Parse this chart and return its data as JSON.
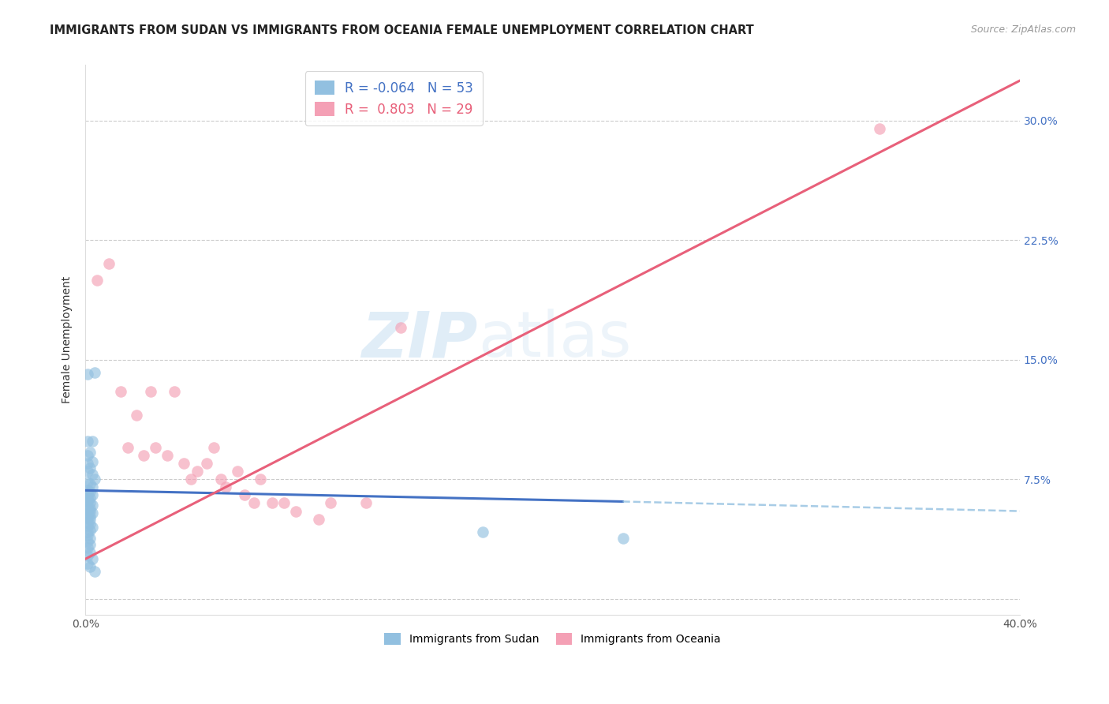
{
  "title": "IMMIGRANTS FROM SUDAN VS IMMIGRANTS FROM OCEANIA FEMALE UNEMPLOYMENT CORRELATION CHART",
  "source": "Source: ZipAtlas.com",
  "ylabel": "Female Unemployment",
  "color_sudan": "#92c0e0",
  "color_oceania": "#f4a0b5",
  "color_line_sudan": "#4472c4",
  "color_line_oceania": "#e8607a",
  "xmin": 0.0,
  "xmax": 0.4,
  "ymin": -0.01,
  "ymax": 0.335,
  "ytick_values": [
    0.0,
    0.075,
    0.15,
    0.225,
    0.3
  ],
  "ytick_labels": [
    "",
    "7.5%",
    "15.0%",
    "22.5%",
    "30.0%"
  ],
  "sudan_points": [
    [
      0.001,
      0.141
    ],
    [
      0.004,
      0.142
    ],
    [
      0.001,
      0.099
    ],
    [
      0.003,
      0.099
    ],
    [
      0.002,
      0.092
    ],
    [
      0.001,
      0.09
    ],
    [
      0.001,
      0.085
    ],
    [
      0.003,
      0.086
    ],
    [
      0.002,
      0.082
    ],
    [
      0.001,
      0.08
    ],
    [
      0.003,
      0.078
    ],
    [
      0.004,
      0.075
    ],
    [
      0.001,
      0.073
    ],
    [
      0.002,
      0.072
    ],
    [
      0.003,
      0.07
    ],
    [
      0.001,
      0.068
    ],
    [
      0.002,
      0.067
    ],
    [
      0.001,
      0.066
    ],
    [
      0.003,
      0.065
    ],
    [
      0.001,
      0.064
    ],
    [
      0.002,
      0.063
    ],
    [
      0.001,
      0.062
    ],
    [
      0.001,
      0.061
    ],
    [
      0.002,
      0.06
    ],
    [
      0.003,
      0.059
    ],
    [
      0.001,
      0.058
    ],
    [
      0.002,
      0.057
    ],
    [
      0.001,
      0.056
    ],
    [
      0.002,
      0.055
    ],
    [
      0.003,
      0.054
    ],
    [
      0.001,
      0.053
    ],
    [
      0.002,
      0.052
    ],
    [
      0.001,
      0.051
    ],
    [
      0.002,
      0.05
    ],
    [
      0.001,
      0.048
    ],
    [
      0.002,
      0.047
    ],
    [
      0.001,
      0.046
    ],
    [
      0.003,
      0.045
    ],
    [
      0.002,
      0.043
    ],
    [
      0.001,
      0.042
    ],
    [
      0.001,
      0.04
    ],
    [
      0.002,
      0.038
    ],
    [
      0.001,
      0.036
    ],
    [
      0.002,
      0.034
    ],
    [
      0.001,
      0.032
    ],
    [
      0.002,
      0.029
    ],
    [
      0.001,
      0.027
    ],
    [
      0.003,
      0.025
    ],
    [
      0.001,
      0.022
    ],
    [
      0.002,
      0.02
    ],
    [
      0.004,
      0.017
    ],
    [
      0.17,
      0.042
    ],
    [
      0.23,
      0.038
    ]
  ],
  "oceania_points": [
    [
      0.005,
      0.2
    ],
    [
      0.01,
      0.21
    ],
    [
      0.015,
      0.13
    ],
    [
      0.018,
      0.095
    ],
    [
      0.022,
      0.115
    ],
    [
      0.025,
      0.09
    ],
    [
      0.028,
      0.13
    ],
    [
      0.03,
      0.095
    ],
    [
      0.035,
      0.09
    ],
    [
      0.038,
      0.13
    ],
    [
      0.042,
      0.085
    ],
    [
      0.045,
      0.075
    ],
    [
      0.048,
      0.08
    ],
    [
      0.052,
      0.085
    ],
    [
      0.055,
      0.095
    ],
    [
      0.058,
      0.075
    ],
    [
      0.06,
      0.07
    ],
    [
      0.065,
      0.08
    ],
    [
      0.068,
      0.065
    ],
    [
      0.072,
      0.06
    ],
    [
      0.075,
      0.075
    ],
    [
      0.08,
      0.06
    ],
    [
      0.085,
      0.06
    ],
    [
      0.09,
      0.055
    ],
    [
      0.1,
      0.05
    ],
    [
      0.105,
      0.06
    ],
    [
      0.12,
      0.06
    ],
    [
      0.34,
      0.295
    ],
    [
      0.135,
      0.17
    ]
  ],
  "sudan_line_solid": {
    "x0": 0.0,
    "y0": 0.068,
    "x1": 0.23,
    "y1": 0.061
  },
  "sudan_line_dashed": {
    "x0": 0.23,
    "y0": 0.061,
    "x1": 0.4,
    "y1": 0.055
  },
  "oceania_line": {
    "x0": 0.0,
    "y0": 0.025,
    "x1": 0.4,
    "y1": 0.325
  },
  "watermark_zip": "ZIP",
  "watermark_atlas": "atlas",
  "legend_r1": "R = -0.064",
  "legend_n1": "N = 53",
  "legend_r2": "R =  0.803",
  "legend_n2": "N = 29",
  "legend_label1": "Immigrants from Sudan",
  "legend_label2": "Immigrants from Oceania"
}
